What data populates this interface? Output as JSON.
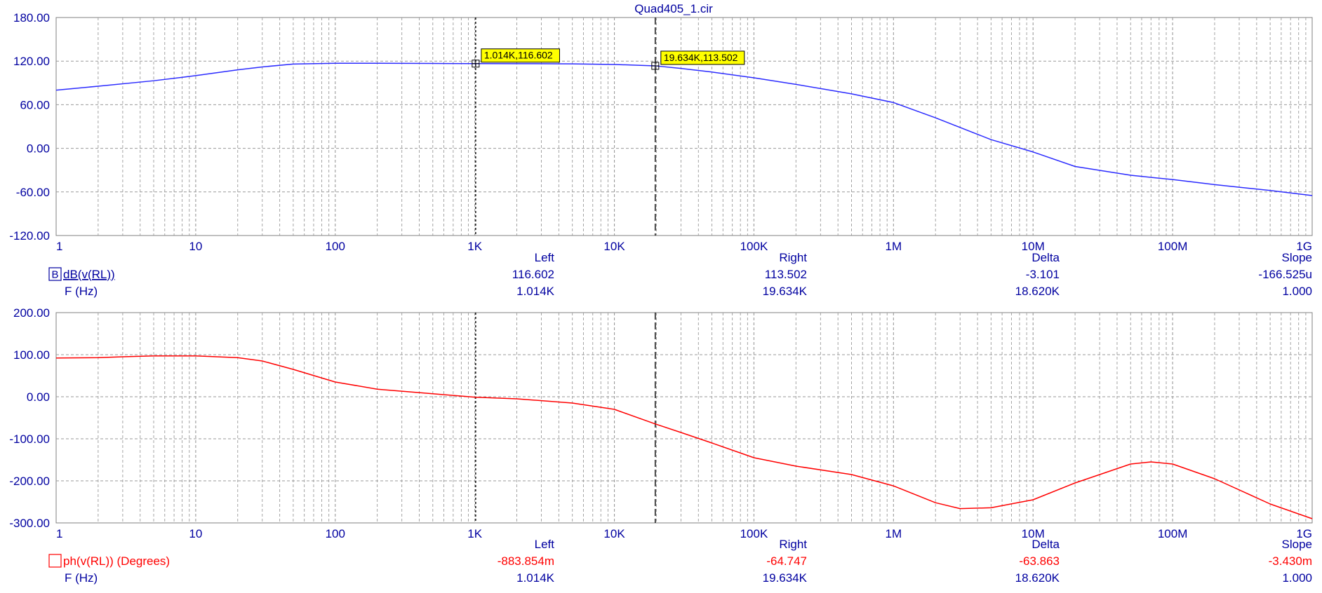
{
  "title": "Quad405_1.cir",
  "x_tick_labels": [
    "1",
    "10",
    "100",
    "1K",
    "10K",
    "100K",
    "1M",
    "10M",
    "100M",
    "1G"
  ],
  "colors": {
    "axis_text": "#0000a0",
    "mag_trace": "#2b2bff",
    "phase_trace": "#ff0000",
    "grid": "#9a9a9a",
    "cursor": "#000000",
    "marker_bg": "#ffff00"
  },
  "cursors": {
    "left_hz": 1014,
    "right_hz": 19634
  },
  "chart_data": [
    {
      "type": "line",
      "title": "Quad405_1.cir",
      "xscale": "log",
      "xlim": [
        1,
        1000000000
      ],
      "ylim": [
        -120,
        180
      ],
      "y_tick_labels": [
        "180.00",
        "120.00",
        "60.00",
        "0.00",
        "-60.00",
        "-120.00"
      ],
      "grid": true,
      "series": [
        {
          "name": "dB(v(RL))",
          "x": [
            1,
            2,
            5,
            10,
            20,
            30,
            50,
            100,
            200,
            500,
            1000,
            2000,
            5000,
            10000,
            19634,
            30000,
            50000,
            100000,
            200000,
            500000,
            1000000,
            2000000,
            5000000,
            10000000,
            20000000,
            50000000,
            100000000,
            200000000,
            500000000,
            1000000000
          ],
          "y": [
            80,
            85.5,
            93,
            100,
            108,
            112,
            116,
            117,
            117,
            116.8,
            116.6,
            116.5,
            116.2,
            115.4,
            113.5,
            110,
            105,
            97,
            88,
            75,
            63,
            42,
            12,
            -5,
            -25,
            -37,
            -43,
            -50,
            -58,
            -65
          ]
        }
      ],
      "markers": [
        {
          "label": "1.014K,116.602",
          "x": 1014,
          "y": 116.602
        },
        {
          "label": "19.634K,113.502",
          "x": 19634,
          "y": 113.502
        }
      ],
      "readout": {
        "headers": [
          "Left",
          "Right",
          "Delta",
          "Slope"
        ],
        "rows": [
          {
            "name": "dB(v(RL))",
            "values": [
              "116.602",
              "113.502",
              "-3.101",
              "-166.525u"
            ]
          },
          {
            "name": "F (Hz)",
            "values": [
              "1.014K",
              "19.634K",
              "18.620K",
              "1.000"
            ]
          }
        ]
      }
    },
    {
      "type": "line",
      "xscale": "log",
      "xlim": [
        1,
        1000000000
      ],
      "ylim": [
        -300,
        200
      ],
      "y_tick_labels": [
        "200.00",
        "100.00",
        "0.00",
        "-100.00",
        "-200.00",
        "-300.00"
      ],
      "grid": true,
      "series": [
        {
          "name": "ph(v(RL)) (Degrees)",
          "x": [
            1,
            2,
            3,
            5,
            10,
            20,
            30,
            50,
            100,
            200,
            500,
            1000,
            2000,
            5000,
            10000,
            19634,
            30000,
            50000,
            100000,
            200000,
            500000,
            1000000,
            2000000,
            3000000,
            5000000,
            10000000,
            20000000,
            50000000,
            70000000,
            100000000,
            200000000,
            500000000,
            1000000000
          ],
          "y": [
            92,
            93,
            95,
            97,
            97,
            93,
            85,
            65,
            35,
            18,
            7,
            -1,
            -5,
            -15,
            -30,
            -64.7,
            -85,
            -110,
            -145,
            -165,
            -185,
            -212,
            -252,
            -266,
            -264,
            -245,
            -205,
            -160,
            -155,
            -160,
            -195,
            -255,
            -290
          ]
        }
      ],
      "readout": {
        "headers": [
          "Left",
          "Right",
          "Delta",
          "Slope"
        ],
        "rows": [
          {
            "name": "ph(v(RL)) (Degrees)",
            "values": [
              "-883.854m",
              "-64.747",
              "-63.863",
              "-3.430m"
            ]
          },
          {
            "name": "F (Hz)",
            "values": [
              "1.014K",
              "19.634K",
              "18.620K",
              "1.000"
            ]
          }
        ]
      }
    }
  ]
}
